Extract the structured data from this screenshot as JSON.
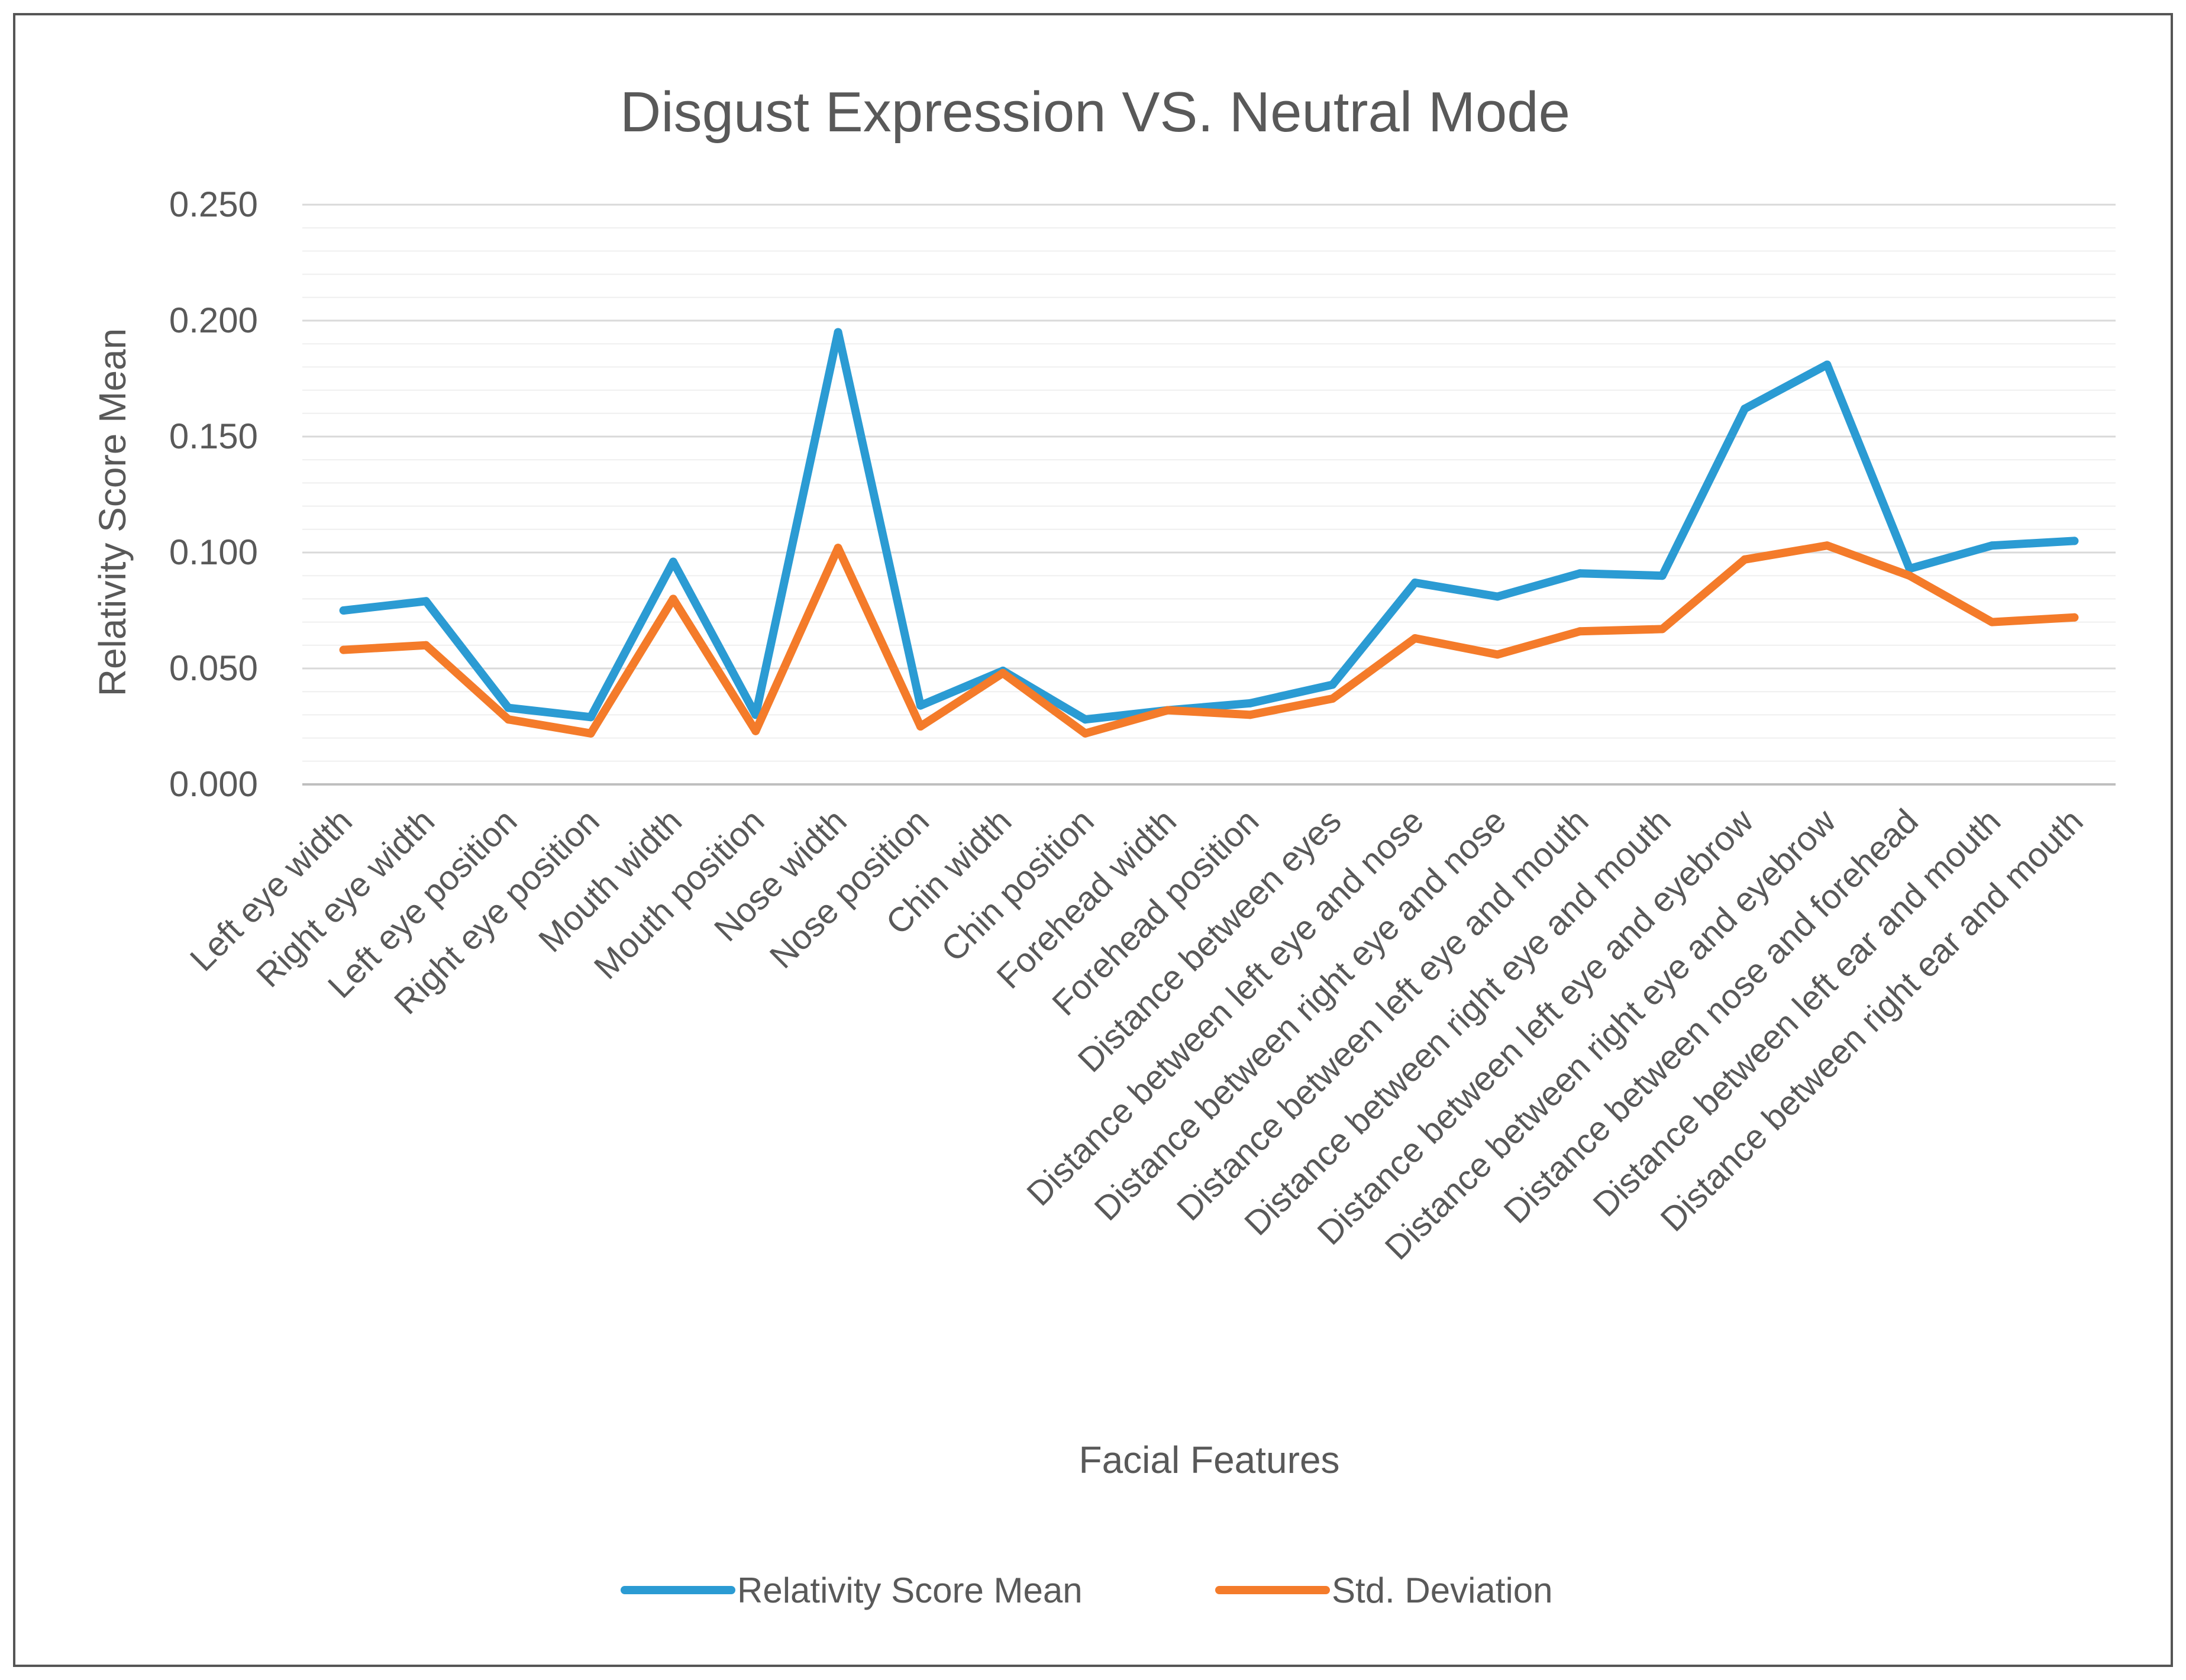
{
  "chart_data": {
    "type": "line",
    "title": "Disgust Expression VS. Neutral Mode",
    "xlabel": "Facial Features",
    "ylabel": "Relativity Score Mean",
    "ylim": [
      0,
      0.25
    ],
    "yticks": [
      "0.000",
      "0.050",
      "0.100",
      "0.150",
      "0.200",
      "0.250"
    ],
    "ytick_values": [
      0,
      0.05,
      0.1,
      0.15,
      0.2,
      0.25
    ],
    "minor_gridlines": true,
    "legend_position": "bottom",
    "categories": [
      "Left eye width",
      "Right eye width",
      "Left eye position",
      "Right eye position",
      "Mouth width",
      "Mouth position",
      "Nose width",
      "Nose position",
      "Chin width",
      "Chin position",
      "Forehead width",
      "Forehead position",
      "Distance between eyes",
      "Distance between left eye and nose",
      "Distance between right eye and nose",
      "Distance between left eye and mouth",
      "Distance between right eye and mouth",
      "Distance between left eye and eyebrow",
      "Distance between right eye and eyebrow",
      "Distance between nose and forehead",
      "Distance between left ear and mouth",
      "Distance between right ear and mouth"
    ],
    "series": [
      {
        "name": "Relativity Score Mean",
        "color": "#2b9bd3",
        "values": [
          0.075,
          0.079,
          0.033,
          0.029,
          0.096,
          0.03,
          0.195,
          0.034,
          0.049,
          0.028,
          0.032,
          0.035,
          0.043,
          0.087,
          0.081,
          0.091,
          0.09,
          0.162,
          0.181,
          0.093,
          0.103,
          0.105
        ]
      },
      {
        "name": "Std. Deviation",
        "color": "#f47b2a",
        "values": [
          0.058,
          0.06,
          0.028,
          0.022,
          0.08,
          0.023,
          0.102,
          0.025,
          0.048,
          0.022,
          0.032,
          0.03,
          0.037,
          0.063,
          0.056,
          0.066,
          0.067,
          0.097,
          0.103,
          0.09,
          0.07,
          0.072
        ]
      }
    ]
  }
}
